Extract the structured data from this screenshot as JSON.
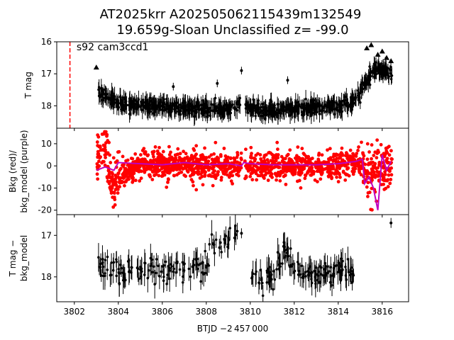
{
  "figure": {
    "title_line1": "AT2025krr  A202505062115439m132549",
    "title_line2": "19.659g-Sloan Unclassified z= -99.0",
    "xlabel": "BTJD −2 457 000",
    "x_ticks": [
      3802,
      3804,
      3806,
      3808,
      3810,
      3812,
      3814,
      3816
    ],
    "xlim": [
      3801.2,
      3817.2
    ]
  },
  "chart_data": [
    {
      "type": "scatter",
      "panel": "top",
      "ylabel": "T mag",
      "ylim": [
        18.7,
        16.0
      ],
      "y_inverted": true,
      "y_ticks": [
        16,
        17,
        18
      ],
      "annotation": "s92 cam3ccd1",
      "vline": {
        "x": 3801.8,
        "color": "#ff0000",
        "style": "dashed"
      },
      "series": [
        {
          "marker": "triangle",
          "color": "#000000",
          "points": [
            [
              3803.0,
              16.8
            ],
            [
              3815.3,
              16.2
            ],
            [
              3815.5,
              16.1
            ],
            [
              3815.8,
              16.4
            ],
            [
              3816.0,
              16.3
            ],
            [
              3816.2,
              16.5
            ],
            [
              3816.4,
              16.6
            ]
          ]
        },
        {
          "marker": "dot",
          "color": "#000000",
          "points_summary": [
            {
              "x": 3803.2,
              "y": 17.6
            },
            {
              "x": 3803.5,
              "y": 17.7
            },
            {
              "x": 3804.0,
              "y": 17.9
            },
            {
              "x": 3805.0,
              "y": 18.0
            },
            {
              "x": 3806.0,
              "y": 18.0
            },
            {
              "x": 3807.0,
              "y": 18.05
            },
            {
              "x": 3808.0,
              "y": 18.1
            },
            {
              "x": 3809.0,
              "y": 18.1
            },
            {
              "x": 3809.6,
              "y": 17.9
            },
            {
              "x": 3810.0,
              "y": 18.1
            },
            {
              "x": 3811.0,
              "y": 18.15
            },
            {
              "x": 3812.0,
              "y": 18.1
            },
            {
              "x": 3813.0,
              "y": 18.05
            },
            {
              "x": 3814.0,
              "y": 18.0
            },
            {
              "x": 3814.6,
              "y": 17.9
            },
            {
              "x": 3815.0,
              "y": 17.6
            },
            {
              "x": 3815.3,
              "y": 17.2
            },
            {
              "x": 3815.6,
              "y": 16.9
            },
            {
              "x": 3816.0,
              "y": 16.9
            },
            {
              "x": 3816.4,
              "y": 17.0
            }
          ]
        }
      ]
    },
    {
      "type": "line",
      "panel": "middle",
      "ylabel_line1": "Bkg (red)/",
      "ylabel_line2": "bkg_model (purple)",
      "ylim": [
        -22,
        17
      ],
      "y_ticks": [
        -20,
        -10,
        0,
        10
      ],
      "series": [
        {
          "name": "Bkg",
          "color": "#ff0000",
          "marker": "dot",
          "points_summary": [
            {
              "x": 3803.0,
              "y": 0
            },
            {
              "x": 3803.3,
              "y": 10
            },
            {
              "x": 3803.5,
              "y": 5
            },
            {
              "x": 3803.8,
              "y": -12
            },
            {
              "x": 3804.0,
              "y": -4
            },
            {
              "x": 3805.0,
              "y": 0
            },
            {
              "x": 3806.0,
              "y": 0.5
            },
            {
              "x": 3807.0,
              "y": 0.5
            },
            {
              "x": 3808.0,
              "y": 0.5
            },
            {
              "x": 3809.0,
              "y": 0.5
            },
            {
              "x": 3810.0,
              "y": 0
            },
            {
              "x": 3811.0,
              "y": 0
            },
            {
              "x": 3812.0,
              "y": 0
            },
            {
              "x": 3813.0,
              "y": 0
            },
            {
              "x": 3814.0,
              "y": 0.5
            },
            {
              "x": 3815.0,
              "y": 2
            },
            {
              "x": 3815.5,
              "y": -5
            },
            {
              "x": 3816.0,
              "y": -2
            },
            {
              "x": 3816.4,
              "y": 2
            }
          ]
        },
        {
          "name": "bkg_model",
          "color": "#bf00bf",
          "marker": "line",
          "points": [
            [
              3803.0,
              -2
            ],
            [
              3803.4,
              -0.5
            ],
            [
              3803.8,
              -2
            ],
            [
              3804.0,
              1.5
            ],
            [
              3805.0,
              1.0
            ],
            [
              3806.0,
              0.5
            ],
            [
              3807.0,
              1.5
            ],
            [
              3808.0,
              0.5
            ],
            [
              3809.0,
              1.0
            ],
            [
              3809.6,
              0
            ],
            [
              3809.7,
              1.5
            ],
            [
              3810.0,
              1.0
            ],
            [
              3811.0,
              0.5
            ],
            [
              3812.0,
              0.5
            ],
            [
              3813.0,
              0.5
            ],
            [
              3814.0,
              1.0
            ],
            [
              3814.8,
              2.0
            ],
            [
              3815.1,
              3.0
            ],
            [
              3815.2,
              -8
            ],
            [
              3815.4,
              -5
            ],
            [
              3815.6,
              -10
            ],
            [
              3815.8,
              -20
            ],
            [
              3816.0,
              5
            ],
            [
              3816.2,
              -2
            ],
            [
              3816.4,
              2
            ]
          ]
        }
      ]
    },
    {
      "type": "scatter",
      "panel": "bottom",
      "ylabel_line1": "T mag −",
      "ylabel_line2": "bkg_model",
      "ylim": [
        18.6,
        16.5
      ],
      "y_inverted": true,
      "y_ticks": [
        17,
        18
      ],
      "series": [
        {
          "marker": "dot",
          "color": "#000000",
          "points_summary": [
            {
              "x": 3803.1,
              "y": 17.6
            },
            {
              "x": 3803.5,
              "y": 17.8
            },
            {
              "x": 3804.0,
              "y": 17.9
            },
            {
              "x": 3805.0,
              "y": 17.8
            },
            {
              "x": 3806.0,
              "y": 17.9
            },
            {
              "x": 3807.0,
              "y": 17.7
            },
            {
              "x": 3808.0,
              "y": 17.75
            },
            {
              "x": 3808.3,
              "y": 17.2
            },
            {
              "x": 3809.6,
              "y": 16.95
            },
            {
              "x": 3810.0,
              "y": 17.9
            },
            {
              "x": 3811.0,
              "y": 18.0
            },
            {
              "x": 3811.7,
              "y": 17.3
            },
            {
              "x": 3812.0,
              "y": 17.9
            },
            {
              "x": 3813.0,
              "y": 17.9
            },
            {
              "x": 3814.0,
              "y": 17.8
            },
            {
              "x": 3814.6,
              "y": 17.9
            },
            {
              "x": 3816.4,
              "y": 16.7
            }
          ]
        }
      ]
    }
  ]
}
